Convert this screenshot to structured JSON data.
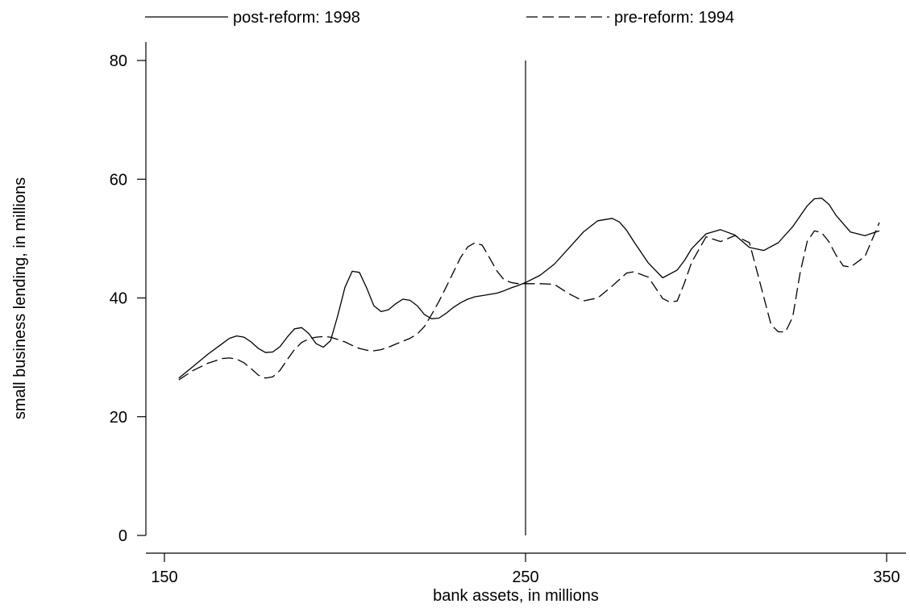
{
  "chart_data": {
    "type": "line",
    "xlabel": "bank assets, in millions",
    "ylabel": "small business lending, in millions",
    "xlim": [
      150,
      350
    ],
    "ylim": [
      0,
      80
    ],
    "x_ticks": [
      150,
      250,
      350
    ],
    "y_ticks": [
      0,
      20,
      40,
      60,
      80
    ],
    "x_tick_labels": [
      "150",
      "250",
      "350"
    ],
    "y_tick_labels": [
      "0",
      "20",
      "40",
      "60",
      "80"
    ],
    "grid": false,
    "legend_position": "top",
    "reference_line": {
      "x": 250,
      "y_range": [
        0,
        80
      ]
    },
    "series": [
      {
        "name": "post-reform: 1998",
        "style": "solid",
        "color": "#000000",
        "x": [
          154,
          158,
          162,
          166,
          168,
          170,
          172,
          174,
          176,
          178,
          180,
          182,
          184,
          186,
          188,
          190,
          192,
          194,
          196,
          198,
          200,
          202,
          204,
          206,
          208,
          210,
          212,
          214,
          216,
          218,
          220,
          222,
          224,
          226,
          228,
          230,
          232,
          234,
          236,
          238,
          240,
          242,
          244,
          246,
          248,
          250,
          254,
          258,
          262,
          266,
          270,
          274,
          276,
          278,
          280,
          284,
          288,
          292,
          294,
          296,
          300,
          304,
          308,
          312,
          316,
          320,
          324,
          328,
          330,
          332,
          334,
          336,
          340,
          344,
          348
        ],
        "y": [
          26.5,
          28.5,
          30.5,
          32.3,
          33.2,
          33.6,
          33.4,
          32.6,
          31.5,
          30.8,
          30.9,
          31.8,
          33.4,
          34.8,
          35.0,
          34.0,
          32.3,
          31.7,
          32.8,
          37.0,
          41.8,
          44.5,
          44.3,
          41.7,
          38.7,
          37.7,
          38.0,
          39.0,
          39.8,
          39.6,
          38.7,
          37.2,
          36.5,
          36.6,
          37.4,
          38.4,
          39.2,
          39.8,
          40.2,
          40.4,
          40.6,
          40.8,
          41.2,
          41.7,
          42.1,
          42.6,
          43.8,
          45.7,
          48.4,
          51.1,
          53.0,
          53.4,
          52.8,
          51.4,
          49.5,
          45.9,
          43.4,
          44.7,
          46.3,
          48.3,
          50.8,
          51.5,
          50.6,
          48.5,
          48.0,
          49.3,
          52.0,
          55.5,
          56.7,
          56.8,
          55.8,
          53.9,
          51.1,
          50.5,
          51.3
        ]
      },
      {
        "name": "pre-reform: 1994",
        "style": "dashed",
        "color": "#000000",
        "x": [
          154,
          158,
          162,
          166,
          168,
          170,
          172,
          174,
          176,
          178,
          180,
          182,
          184,
          186,
          188,
          190,
          192,
          194,
          196,
          198,
          200,
          202,
          204,
          206,
          208,
          210,
          212,
          214,
          216,
          218,
          220,
          222,
          224,
          226,
          228,
          230,
          232,
          234,
          236,
          238,
          240,
          242,
          244,
          246,
          248,
          250,
          254,
          258,
          262,
          266,
          270,
          274,
          278,
          280,
          284,
          288,
          290,
          292,
          294,
          296,
          300,
          304,
          308,
          312,
          316,
          318,
          320,
          322,
          324,
          326,
          328,
          330,
          332,
          334,
          336,
          338,
          340,
          344,
          348
        ],
        "y": [
          26.2,
          27.8,
          29.0,
          29.8,
          29.9,
          29.7,
          29.1,
          28.1,
          27.0,
          26.5,
          26.7,
          27.8,
          29.6,
          31.3,
          32.5,
          33.1,
          33.4,
          33.5,
          33.4,
          33.0,
          32.6,
          32.0,
          31.5,
          31.2,
          31.1,
          31.3,
          31.7,
          32.2,
          32.7,
          33.2,
          33.9,
          35.2,
          37.2,
          39.4,
          41.8,
          44.3,
          46.8,
          48.6,
          49.3,
          48.9,
          46.8,
          44.6,
          43.1,
          42.6,
          42.4,
          42.4,
          42.4,
          42.3,
          40.7,
          39.5,
          40.0,
          42.0,
          44.2,
          44.4,
          43.5,
          39.9,
          39.3,
          39.5,
          42.5,
          46.0,
          50.3,
          49.5,
          50.5,
          49.3,
          40.1,
          35.5,
          34.3,
          34.3,
          36.8,
          44.1,
          49.5,
          51.3,
          51.0,
          49.5,
          47.2,
          45.4,
          45.2,
          47.0,
          52.7
        ]
      }
    ]
  }
}
